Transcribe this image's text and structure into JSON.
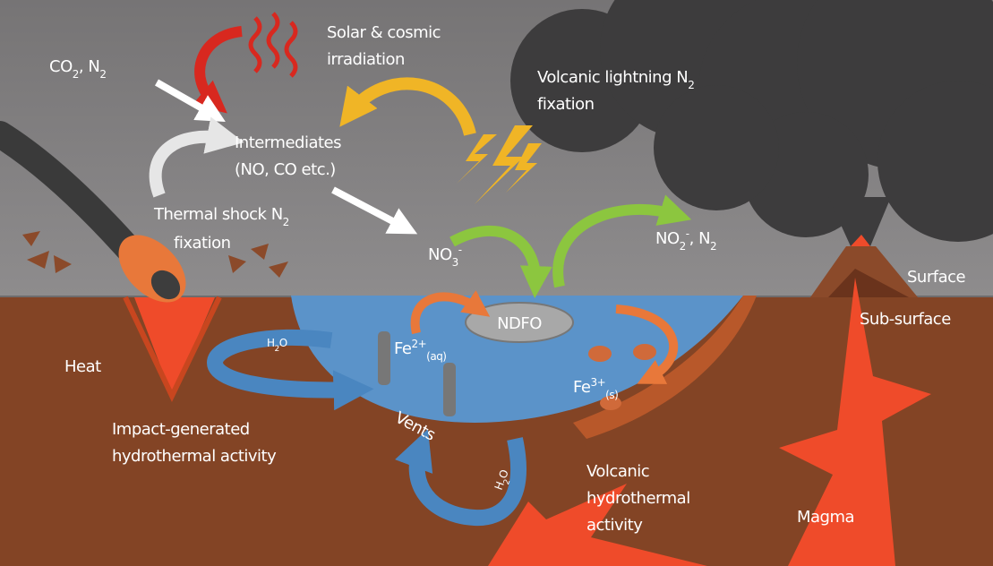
{
  "atmosphere": {
    "gases": [
      "CO",
      "2",
      ", N",
      "2"
    ],
    "solar": [
      "Solar & cosmic",
      "irradiation"
    ],
    "lightning": [
      "Volcanic lightning N",
      "2",
      "fixation"
    ],
    "intermediates": [
      "Intermediates",
      "(NO, CO etc.)"
    ],
    "thermal_shock": [
      "Thermal shock N",
      "2",
      "fixation"
    ],
    "nitrate": [
      "NO",
      "3",
      "-"
    ],
    "products": [
      "NO",
      "2",
      "-",
      ", N",
      "2"
    ]
  },
  "layers": {
    "surface": "Surface",
    "subsurface": "Sub-surface"
  },
  "lake": {
    "ndfo": "NDFO",
    "water_left": [
      "H",
      "2",
      "O"
    ],
    "ferrous": [
      "Fe",
      "2+",
      "(aq)"
    ],
    "ferric": [
      "Fe",
      "3+",
      "(s)"
    ],
    "vents": "Vents",
    "water_bottom": [
      "H",
      "2",
      "O"
    ]
  },
  "ground": {
    "heat": "Heat",
    "impact": [
      "Impact-generated",
      "hydrothermal activity"
    ],
    "volcanic": [
      "Volcanic",
      "hydrothermal",
      "activity"
    ],
    "magma": "Magma"
  }
}
